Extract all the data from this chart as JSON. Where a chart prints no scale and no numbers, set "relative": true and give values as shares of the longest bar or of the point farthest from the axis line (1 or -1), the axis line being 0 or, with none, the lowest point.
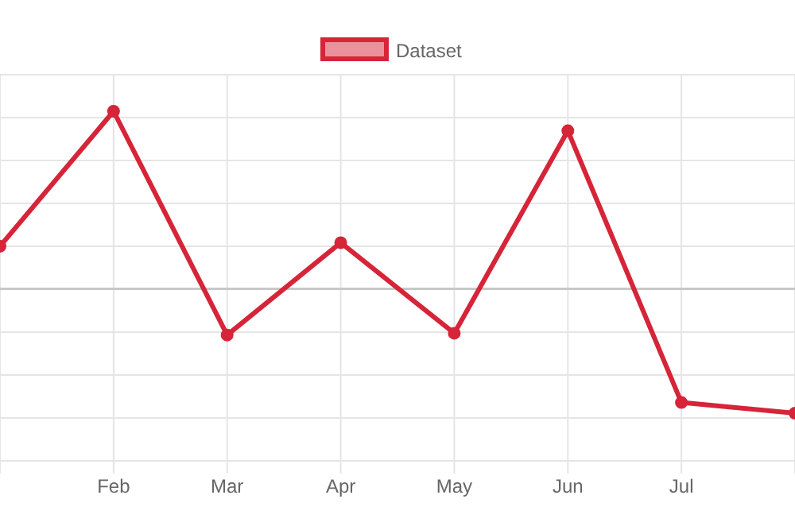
{
  "chart_data": {
    "type": "line",
    "relative": true,
    "categories": [
      null,
      "Feb",
      "Mar",
      "Apr",
      "May",
      "Jun",
      "Jul",
      null
    ],
    "series": [
      {
        "name": "Dataset",
        "color": "#d62438",
        "values": [
          0.24,
          1,
          -0.26,
          0.26,
          -0.25,
          0.89,
          -0.64,
          -0.7
        ]
      }
    ],
    "grid": true,
    "legend": "top",
    "marker": "circle",
    "line_style": "solid"
  }
}
